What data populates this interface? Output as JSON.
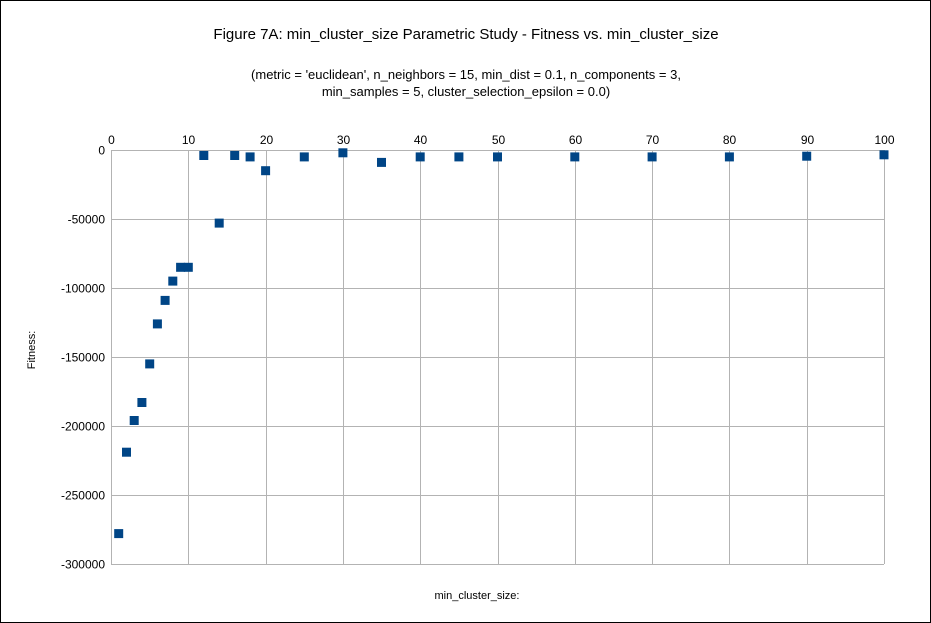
{
  "chart_data": {
    "type": "scatter",
    "title": "Figure 7A: min_cluster_size Parametric Study - Fitness vs. min_cluster_size",
    "subtitle_lines": [
      "(metric = 'euclidean', n_neighbors = 15, min_dist = 0.1, n_components = 3,",
      "min_samples = 5, cluster_selection_epsilon = 0.0)"
    ],
    "xlabel": "min_cluster_size:",
    "ylabel": "Fitness:",
    "xlim": [
      0,
      100
    ],
    "ylim": [
      -300000,
      0
    ],
    "x_ticks": [
      0,
      10,
      20,
      30,
      40,
      50,
      60,
      70,
      80,
      90,
      100
    ],
    "y_ticks": [
      0,
      -50000,
      -100000,
      -150000,
      -200000,
      -250000,
      -300000
    ],
    "x_axis_position": "top",
    "grid": true,
    "legend": "none",
    "marker": "square",
    "marker_color": "#004586",
    "series": [
      {
        "x": [
          1,
          2,
          3,
          4,
          5,
          6,
          7,
          8,
          9,
          10,
          12,
          14,
          16,
          18,
          20,
          25,
          30,
          35,
          40,
          45,
          50,
          60,
          70,
          80,
          90,
          100
        ],
        "y": [
          -278000,
          -219000,
          -196000,
          -183000,
          -155000,
          -126000,
          -109000,
          -95000,
          -85000,
          -85000,
          -4000,
          -53000,
          -4000,
          -5000,
          -15000,
          -5000,
          -2000,
          -9000,
          -5000,
          -5000,
          -5000,
          -5000,
          -5000,
          -5000,
          -4500,
          -3500
        ]
      }
    ]
  }
}
